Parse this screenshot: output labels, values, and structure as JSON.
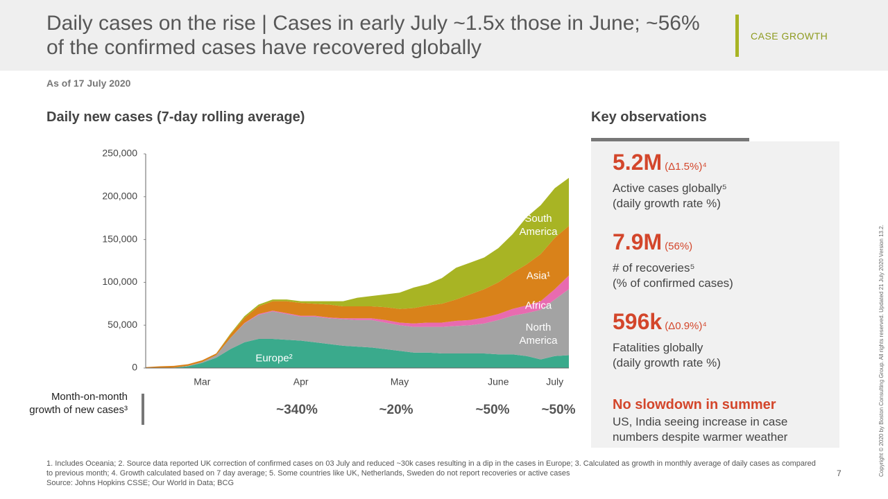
{
  "header": {
    "title": "Daily cases on the rise | Cases in early July ~1.5x those in June; ~56% of the confirmed cases have recovered globally",
    "tag": "CASE GROWTH",
    "as_of": "As of 17 July 2020"
  },
  "chart_data": {
    "type": "stacked_area",
    "title": "Daily new cases (7-day rolling average)",
    "categories": [
      null,
      null,
      null,
      null,
      "Mar",
      null,
      null,
      null,
      null,
      null,
      null,
      "Apr",
      null,
      null,
      null,
      null,
      null,
      null,
      "May",
      null,
      null,
      null,
      null,
      null,
      null,
      "June",
      null,
      null,
      null,
      "July",
      null
    ],
    "series": [
      {
        "name": "Europe²",
        "color": "#3aaa8c",
        "values": [
          0,
          0,
          500,
          2000,
          6000,
          12000,
          22000,
          30000,
          34000,
          34000,
          33000,
          32000,
          30000,
          28000,
          26000,
          25000,
          24000,
          22000,
          20000,
          18000,
          18000,
          17000,
          17000,
          17000,
          17000,
          16000,
          16000,
          14000,
          10000,
          14000,
          15000
        ]
      },
      {
        "name": "North America",
        "color": "#a3a3a3",
        "values": [
          0,
          0,
          0,
          500,
          1000,
          3000,
          13000,
          22000,
          28000,
          32000,
          30000,
          28000,
          30000,
          30000,
          31000,
          31000,
          32000,
          31000,
          30000,
          30000,
          30000,
          31000,
          32000,
          33000,
          35000,
          40000,
          45000,
          50000,
          58000,
          66000,
          77000
        ]
      },
      {
        "name": "Africa",
        "color": "#e86bb0",
        "values": [
          0,
          0,
          0,
          0,
          0,
          0,
          0,
          500,
          1000,
          1000,
          1000,
          1000,
          1000,
          1000,
          1000,
          2000,
          2000,
          3000,
          3000,
          4000,
          5000,
          5000,
          6000,
          6000,
          7000,
          7000,
          8000,
          9000,
          10000,
          12000,
          16000
        ]
      },
      {
        "name": "Asia¹",
        "color": "#d9821a",
        "values": [
          1000,
          2000,
          2000,
          2000,
          2000,
          2000,
          4000,
          6000,
          9000,
          11000,
          14000,
          15000,
          14000,
          15000,
          14000,
          14000,
          14000,
          15000,
          16000,
          18000,
          20000,
          22000,
          25000,
          30000,
          33000,
          37000,
          42000,
          48000,
          55000,
          60000,
          58000
        ]
      },
      {
        "name": "South America",
        "color": "#a8b424",
        "values": [
          0,
          0,
          0,
          0,
          0,
          0,
          1000,
          2000,
          2000,
          2000,
          2000,
          2000,
          3000,
          4000,
          6000,
          10000,
          12000,
          15000,
          19000,
          24000,
          25000,
          30000,
          37000,
          37000,
          37000,
          40000,
          45000,
          55000,
          57000,
          58000,
          56000
        ]
      }
    ],
    "ylim": [
      0,
      250000
    ],
    "yticks": [
      0,
      {
        "value": 50000,
        "label": "50,000"
      },
      {
        "value": 100000,
        "label": "100,000"
      },
      {
        "value": 150000,
        "label": "150,000"
      },
      {
        "value": 200000,
        "label": "200,000"
      },
      {
        "value": 250000,
        "label": "250,000"
      }
    ]
  },
  "growth": {
    "label": "Month-on-month growth of new cases³",
    "values": [
      "~340%",
      "~20%",
      "~50%",
      "~50%"
    ]
  },
  "observations": {
    "title": "Key observations",
    "items": [
      {
        "value": "5.2M",
        "delta": "(Δ1.5%)⁴",
        "line1": "Active cases globally⁵",
        "line2": "(daily growth rate %)"
      },
      {
        "value": "7.9M",
        "delta": "(56%)",
        "line1": "# of recoveries⁵",
        "line2": "(% of confirmed cases)"
      },
      {
        "value": "596k",
        "delta": "(Δ0.9%)⁴",
        "line1": "Fatalities globally",
        "line2": "(daily growth rate %)"
      }
    ],
    "conclusion": {
      "title": "No slowdown in summer",
      "text": "US, India seeing increase in case numbers despite warmer weather"
    }
  },
  "footer": {
    "notes": "1. Includes Oceania;  2. Source data reported UK correction of confirmed cases on 03 July and reduced ~30k cases resulting in a dip in the cases in Europe;  3. Calculated as growth in monthly average of daily cases as compared to previous month;  4. Growth calculated based on 7 day average;  5. Some countries like UK, Netherlands, Sweden do not report recoveries or active cases",
    "source": "Source: Johns Hopkins CSSE; Our World in Data; BCG",
    "page": "7",
    "copyright": "Copyright © 2020 by Boston Consulting Group. All rights reserved. Updated 21 July 2020 Version 13.2."
  }
}
